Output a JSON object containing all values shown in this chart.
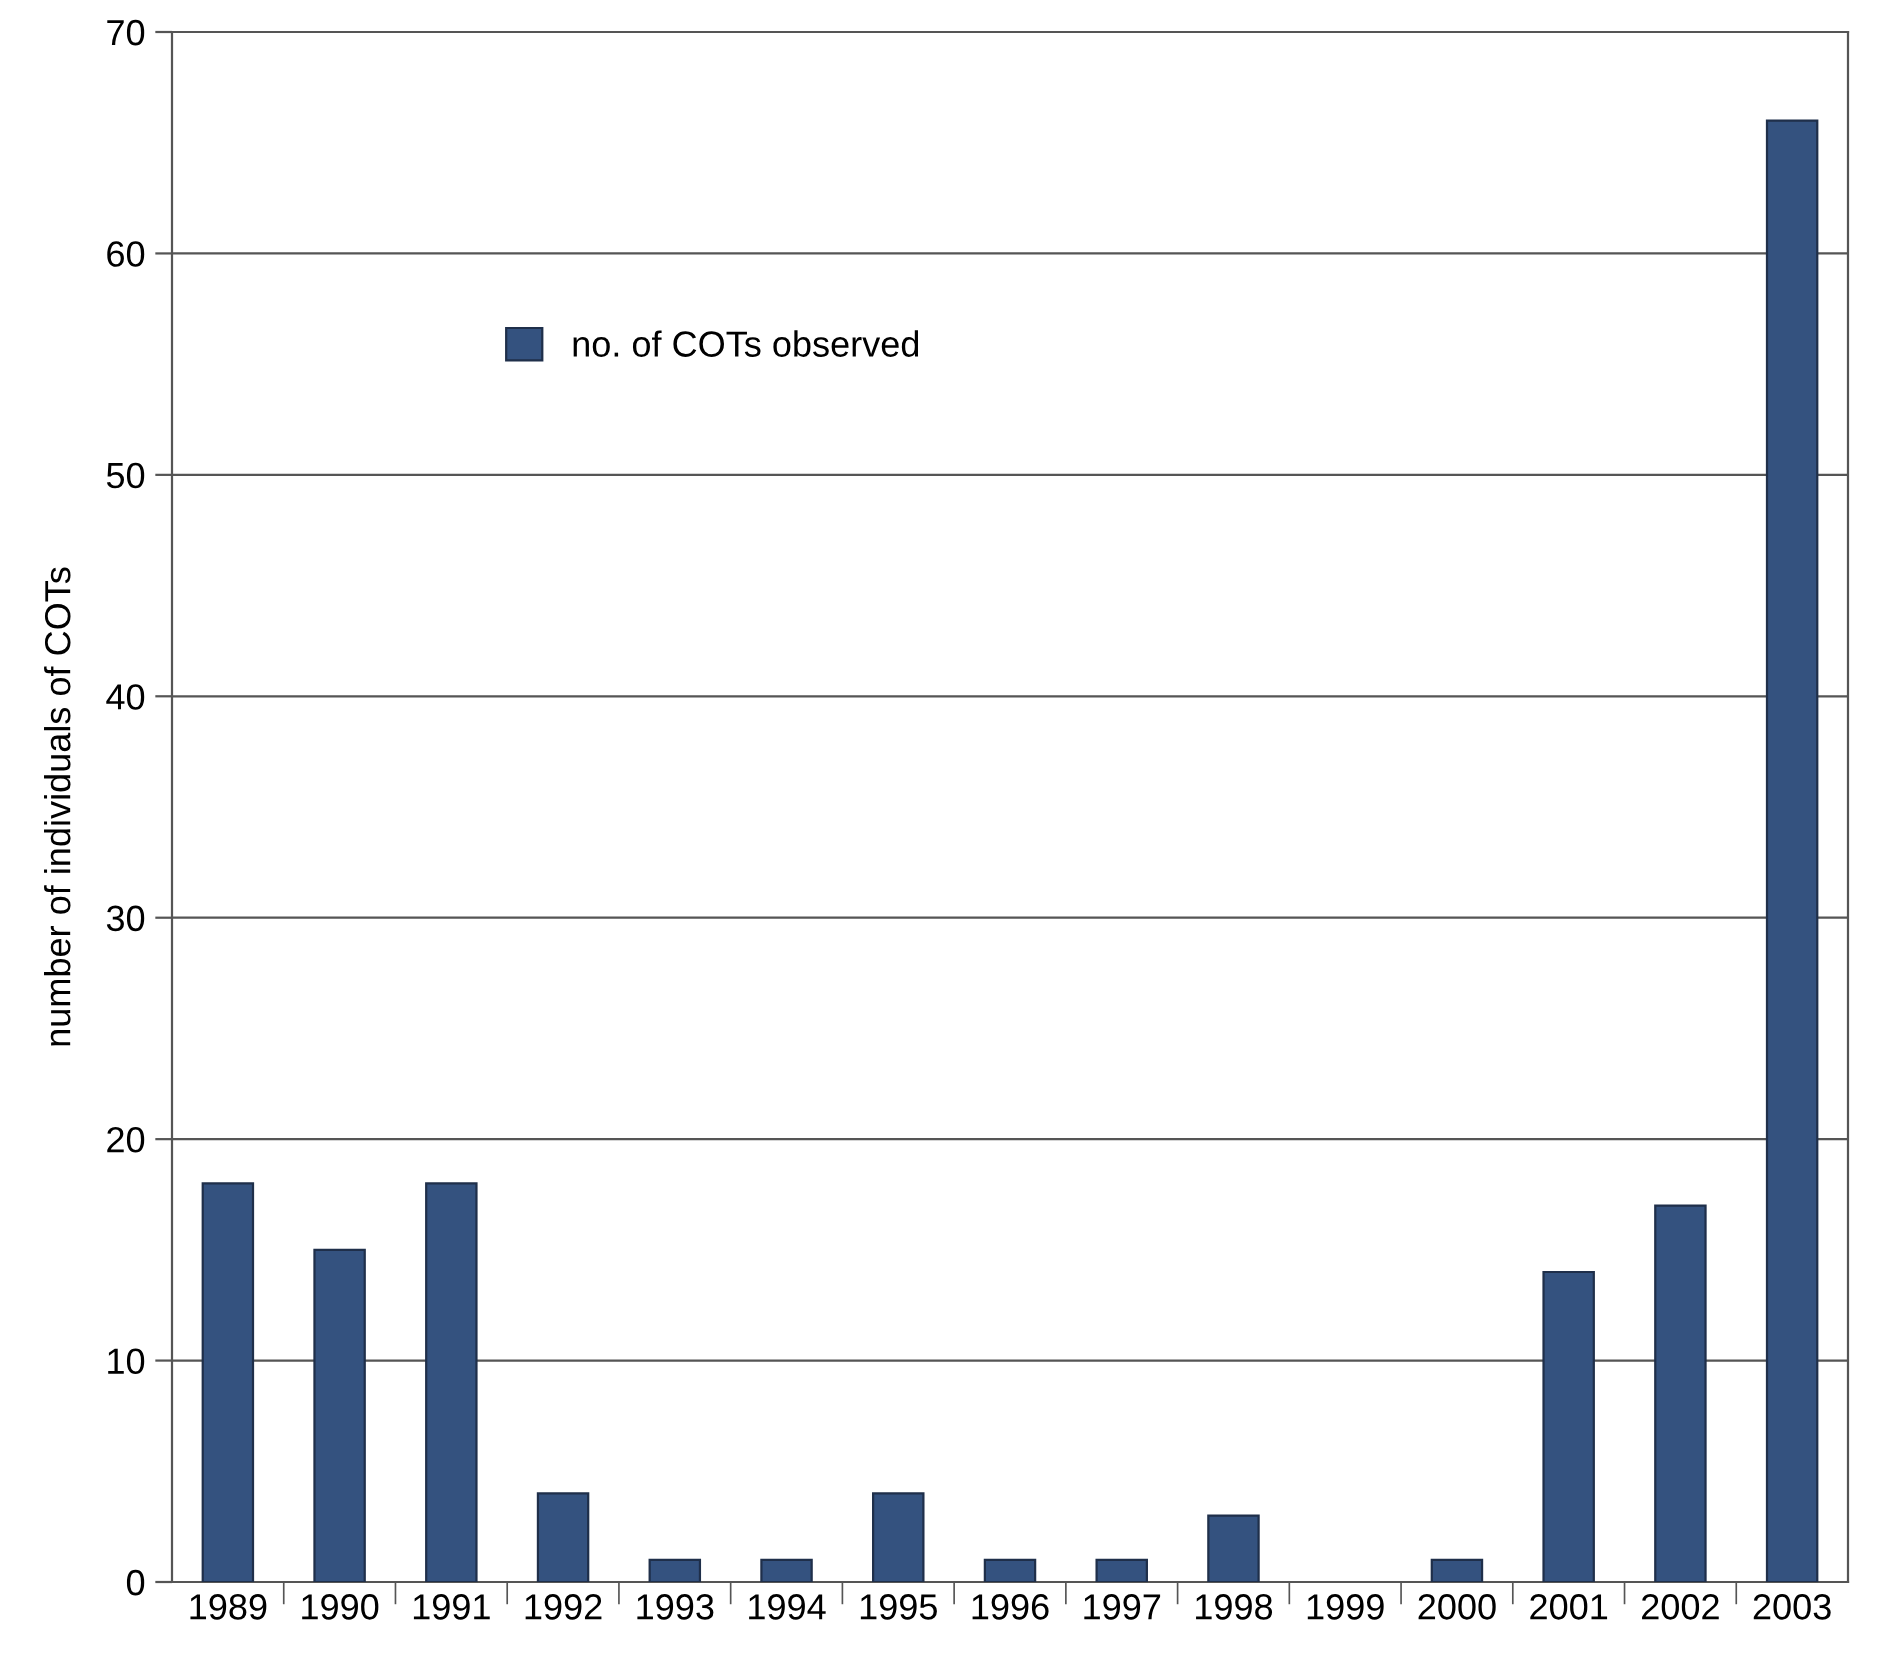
{
  "chart_data": {
    "type": "bar",
    "ylabel": "number of individuals of COTs",
    "categories": [
      "1989",
      "1990",
      "1991",
      "1992",
      "1993",
      "1994",
      "1995",
      "1996",
      "1997",
      "1998",
      "1999",
      "2000",
      "2001",
      "2002",
      "2003"
    ],
    "series": [
      {
        "name": "no. of COTs observed",
        "color": "#34527f",
        "values": [
          18,
          15,
          18,
          4,
          1,
          1,
          4,
          1,
          1,
          3,
          0,
          1,
          14,
          17,
          66
        ]
      }
    ],
    "ylim": [
      0,
      70
    ],
    "yticks": [
      0,
      10,
      20,
      30,
      40,
      50,
      60,
      70
    ],
    "grid": "y",
    "legend": "top left"
  }
}
